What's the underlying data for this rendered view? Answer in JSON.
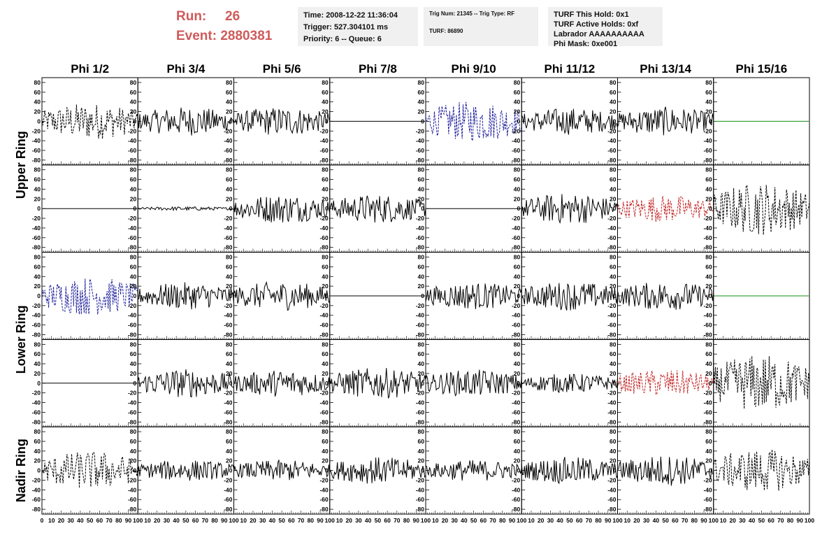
{
  "header": {
    "run_label": "Run:",
    "run_value": "26",
    "event_label": "Event:",
    "event_value": "2880381"
  },
  "info1": {
    "time": "Time: 2008-12-22 11:36:04",
    "trigger": "Trigger: 527.304101 ms",
    "priority": "Priority: 6 -- Queue: 6"
  },
  "info2": {
    "trig": "Trig Num: 21345 -- Trig Type: RF",
    "turf": "TURF: 86890"
  },
  "info3": {
    "hold": "TURF This Hold: 0x1",
    "active": "TURF Active Holds: 0xf",
    "labrador": "Labrador AAAAAAAAAA",
    "mask": "Phi Mask: 0xe001"
  },
  "chart_data": {
    "type": "line",
    "columns": [
      "Phi 1/2",
      "Phi 3/4",
      "Phi 5/6",
      "Phi 7/8",
      "Phi 9/10",
      "Phi 11/12",
      "Phi 13/14",
      "Phi 15/16"
    ],
    "ring_labels": [
      "Upper Ring",
      "Lower Ring",
      "Nadir Ring"
    ],
    "xlim": [
      0,
      100
    ],
    "ylim": [
      -90,
      90
    ],
    "x_ticks": [
      0,
      10,
      20,
      30,
      40,
      50,
      60,
      70,
      80,
      90,
      100
    ],
    "y_ticks": [
      -80,
      -60,
      -40,
      -20,
      0,
      20,
      40,
      60,
      80
    ],
    "colors": {
      "solid": "#000000",
      "dashed": "#000000",
      "blue": "#1c1c9a",
      "red": "#c02020",
      "green": "#129012",
      "flat": "#000000"
    },
    "panels": [
      [
        {
          "style": "dashed",
          "amp": 38
        },
        {
          "style": "solid",
          "amp": 30
        },
        {
          "style": "solid",
          "amp": 30
        },
        {
          "style": "flat",
          "amp": 0
        },
        {
          "style": "blue",
          "amp": 42
        },
        {
          "style": "solid",
          "amp": 28
        },
        {
          "style": "solid",
          "amp": 30
        },
        {
          "style": "green",
          "amp": 0
        }
      ],
      [
        {
          "style": "flat",
          "amp": 0
        },
        {
          "style": "solid",
          "amp": 4
        },
        {
          "style": "solid",
          "amp": 30
        },
        {
          "style": "solid",
          "amp": 30
        },
        {
          "style": "flat",
          "amp": 0
        },
        {
          "style": "solid",
          "amp": 32
        },
        {
          "style": "red",
          "amp": 28
        },
        {
          "style": "dashed",
          "amp": 55
        }
      ],
      [
        {
          "style": "blue",
          "amp": 40
        },
        {
          "style": "solid",
          "amp": 28
        },
        {
          "style": "solid",
          "amp": 30
        },
        {
          "style": "flat",
          "amp": 0
        },
        {
          "style": "solid",
          "amp": 28
        },
        {
          "style": "solid",
          "amp": 30
        },
        {
          "style": "solid",
          "amp": 30
        },
        {
          "style": "green",
          "amp": 0
        }
      ],
      [
        {
          "style": "flat",
          "amp": 0
        },
        {
          "style": "solid",
          "amp": 30
        },
        {
          "style": "solid",
          "amp": 28
        },
        {
          "style": "solid",
          "amp": 32
        },
        {
          "style": "solid",
          "amp": 28
        },
        {
          "style": "solid",
          "amp": 20
        },
        {
          "style": "red",
          "amp": 28
        },
        {
          "style": "dashed",
          "amp": 60
        }
      ],
      [
        {
          "style": "dashed",
          "amp": 40
        },
        {
          "style": "solid",
          "amp": 22
        },
        {
          "style": "solid",
          "amp": 22
        },
        {
          "style": "solid",
          "amp": 28
        },
        {
          "style": "solid",
          "amp": 22
        },
        {
          "style": "solid",
          "amp": 28
        },
        {
          "style": "solid",
          "amp": 32
        },
        {
          "style": "dashed",
          "amp": 45
        }
      ]
    ]
  }
}
